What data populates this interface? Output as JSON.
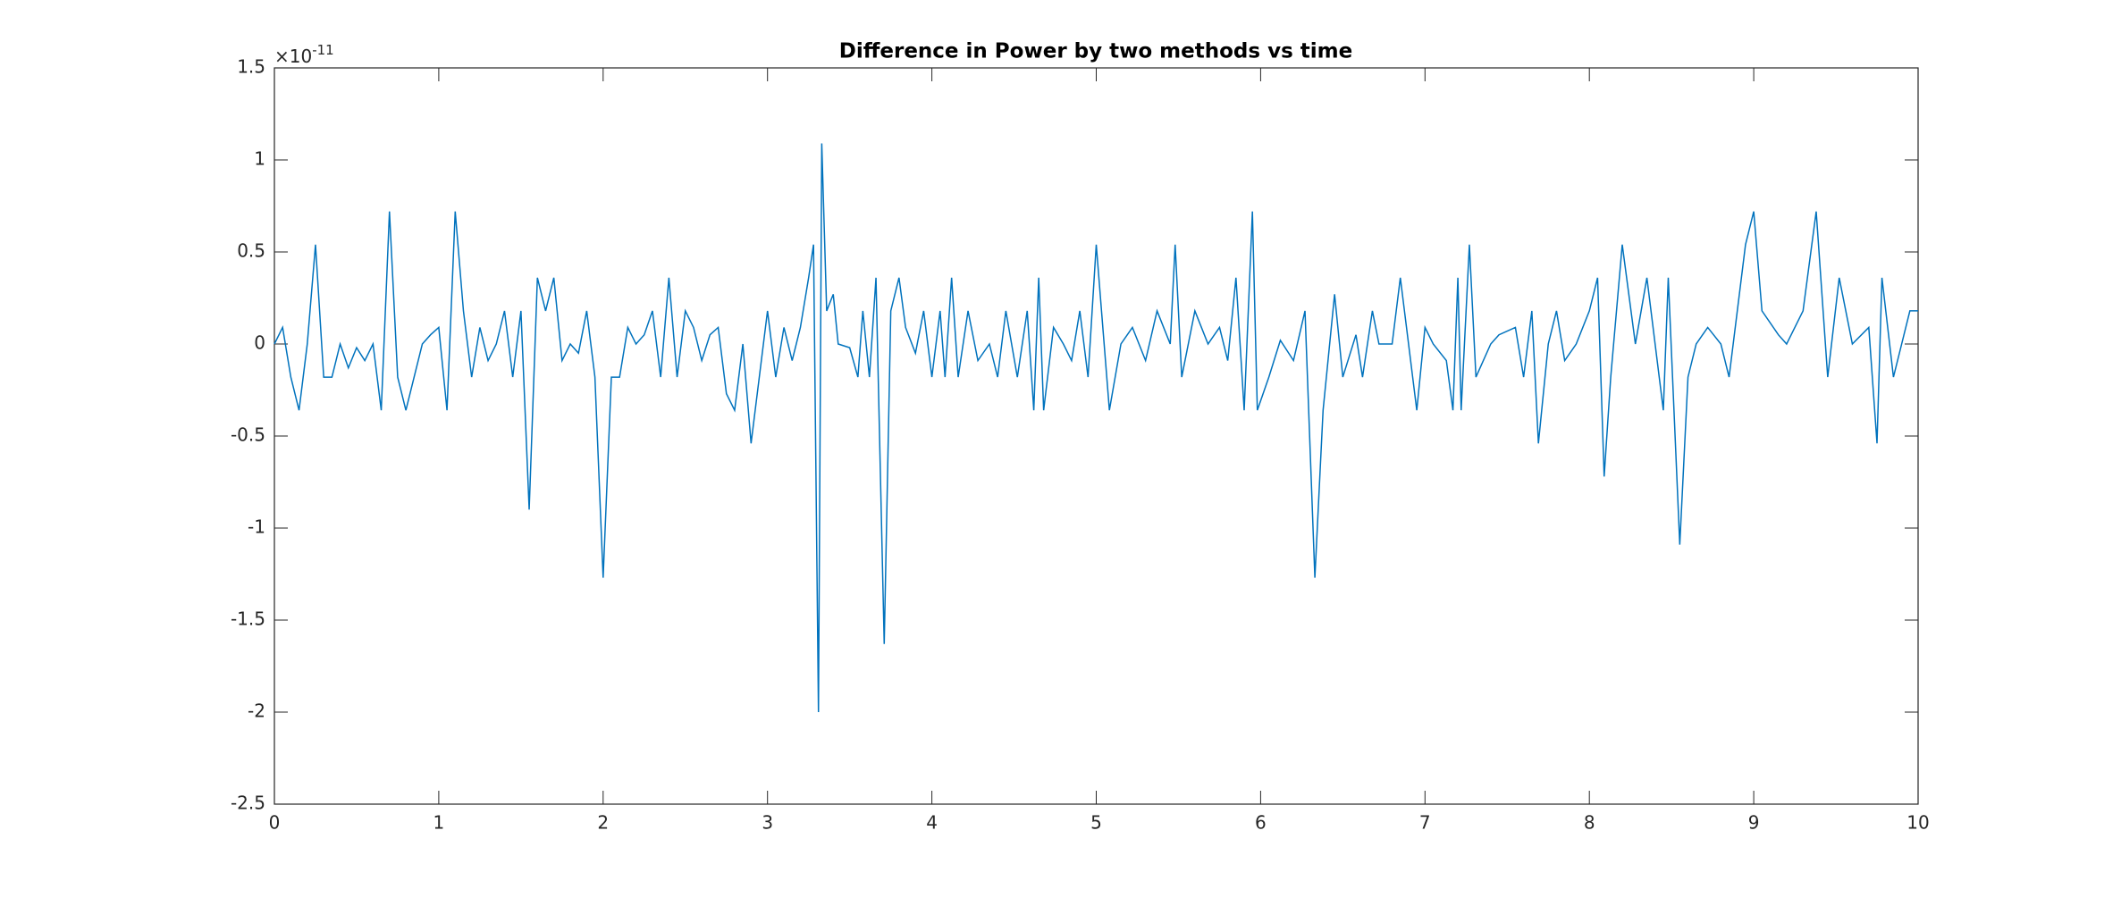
{
  "chart_data": {
    "type": "line",
    "title": "Difference in Power by two methods vs time",
    "y_exponent_base": "×10",
    "y_exponent_power": "-11",
    "x": [
      0,
      0.05,
      0.1,
      0.15,
      0.2,
      0.25,
      0.3,
      0.35,
      0.4,
      0.45,
      0.5,
      0.55,
      0.6,
      0.65,
      0.7,
      0.75,
      0.8,
      0.85,
      0.9,
      0.95,
      1,
      1.05,
      1.1,
      1.15,
      1.2,
      1.25,
      1.3,
      1.35,
      1.4,
      1.45,
      1.5,
      1.55,
      1.6,
      1.65,
      1.7,
      1.75,
      1.8,
      1.85,
      1.9,
      1.95,
      2,
      2.05,
      2.1,
      2.15,
      2.2,
      2.25,
      2.3,
      2.35,
      2.4,
      2.45,
      2.5,
      2.55,
      2.6,
      2.65,
      2.7,
      2.75,
      2.8,
      2.85,
      2.9,
      2.95,
      3,
      3.05,
      3.1,
      3.15,
      3.2,
      3.25,
      3.28,
      3.31,
      3.33,
      3.36,
      3.4,
      3.43,
      3.5,
      3.55,
      3.58,
      3.62,
      3.66,
      3.71,
      3.75,
      3.8,
      3.84,
      3.9,
      3.95,
      4,
      4.05,
      4.08,
      4.12,
      4.16,
      4.22,
      4.28,
      4.35,
      4.4,
      4.45,
      4.52,
      4.58,
      4.62,
      4.65,
      4.68,
      4.74,
      4.8,
      4.85,
      4.9,
      4.95,
      5,
      5.08,
      5.15,
      5.22,
      5.3,
      5.37,
      5.45,
      5.48,
      5.52,
      5.6,
      5.68,
      5.75,
      5.8,
      5.85,
      5.9,
      5.95,
      5.98,
      6.05,
      6.12,
      6.2,
      6.27,
      6.33,
      6.38,
      6.45,
      6.5,
      6.58,
      6.62,
      6.68,
      6.72,
      6.8,
      6.85,
      6.95,
      7,
      7.05,
      7.13,
      7.17,
      7.2,
      7.22,
      7.27,
      7.31,
      7.4,
      7.45,
      7.55,
      7.6,
      7.65,
      7.69,
      7.75,
      7.8,
      7.85,
      7.92,
      8,
      8.05,
      8.09,
      8.13,
      8.2,
      8.28,
      8.35,
      8.45,
      8.48,
      8.55,
      8.6,
      8.65,
      8.72,
      8.8,
      8.85,
      8.95,
      9,
      9.05,
      9.15,
      9.2,
      9.3,
      9.38,
      9.45,
      9.52,
      9.6,
      9.7,
      9.75,
      9.78,
      9.85,
      9.9,
      9.95,
      10
    ],
    "series": [
      {
        "color": "#0072bd",
        "values": [
          0,
          0.09,
          -0.18,
          -0.36,
          0,
          0.54,
          -0.18,
          -0.18,
          0,
          -0.13,
          -0.02,
          -0.09,
          0,
          -0.36,
          0.72,
          -0.18,
          -0.36,
          -0.18,
          0,
          0.05,
          0.09,
          -0.36,
          0.72,
          0.18,
          -0.18,
          0.09,
          -0.09,
          0,
          0.18,
          -0.18,
          0.18,
          -0.9,
          0.36,
          0.18,
          0.36,
          -0.09,
          0,
          -0.05,
          0.18,
          -0.18,
          -1.27,
          -0.18,
          -0.18,
          0.09,
          0,
          0.05,
          0.18,
          -0.18,
          0.36,
          -0.18,
          0.18,
          0.09,
          -0.09,
          0.05,
          0.09,
          -0.27,
          -0.36,
          0,
          -0.54,
          -0.18,
          0.18,
          -0.18,
          0.09,
          -0.09,
          0.09,
          0.36,
          0.54,
          -2,
          1.09,
          0.18,
          0.27,
          0,
          -0.02,
          -0.18,
          0.18,
          -0.18,
          0.36,
          -1.63,
          0.18,
          0.36,
          0.09,
          -0.05,
          0.18,
          -0.18,
          0.18,
          -0.18,
          0.36,
          -0.18,
          0.18,
          -0.09,
          0,
          -0.18,
          0.18,
          -0.18,
          0.18,
          -0.36,
          0.36,
          -0.36,
          0.09,
          0,
          -0.09,
          0.18,
          -0.18,
          0.54,
          -0.36,
          0,
          0.09,
          -0.09,
          0.18,
          0,
          0.54,
          -0.18,
          0.18,
          0,
          0.09,
          -0.09,
          0.36,
          -0.36,
          0.72,
          -0.36,
          -0.18,
          0.02,
          -0.09,
          0.18,
          -1.27,
          -0.36,
          0.27,
          -0.18,
          0.05,
          -0.18,
          0.18,
          0,
          0,
          0.36,
          -0.36,
          0.09,
          0,
          -0.09,
          -0.36,
          0.36,
          -0.36,
          0.54,
          -0.18,
          0,
          0.05,
          0.09,
          -0.18,
          0.18,
          -0.54,
          0,
          0.18,
          -0.09,
          0,
          0.18,
          0.36,
          -0.72,
          -0.18,
          0.54,
          0,
          0.36,
          -0.36,
          0.36,
          -1.09,
          -0.18,
          0,
          0.09,
          0,
          -0.18,
          0.54,
          0.72,
          0.18,
          0.05,
          0,
          0.18,
          0.72,
          -0.18,
          0.36,
          0,
          0.09,
          -0.54,
          0.36,
          -0.18,
          0,
          0.18,
          0.18
        ]
      }
    ],
    "xlim": [
      0,
      10
    ],
    "xticks": [
      0,
      1,
      2,
      3,
      4,
      5,
      6,
      7,
      8,
      9,
      10
    ],
    "ylim": [
      -2.5,
      1.5
    ],
    "yticks": [
      -2.5,
      -2,
      -1.5,
      -1,
      -0.5,
      0,
      0.5,
      1,
      1.5
    ]
  }
}
